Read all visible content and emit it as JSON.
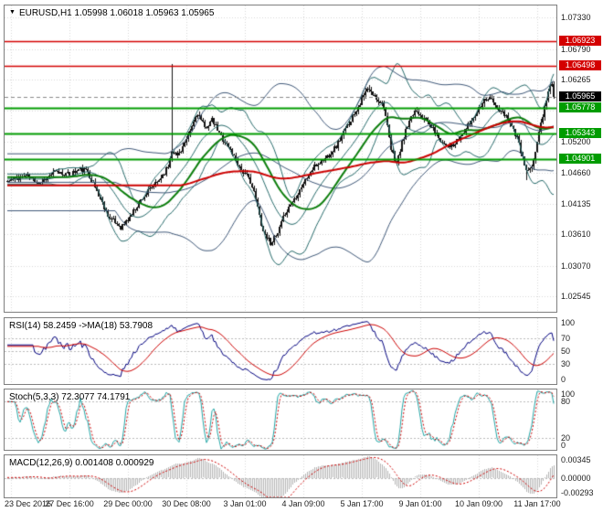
{
  "window": {
    "legend_marker": "▼"
  },
  "main_chart": {
    "legend": "EURUSD,H1 1.05998 1.06018 1.05963 1.05965",
    "scale_ticks": [
      {
        "label": "1.07330",
        "price": 1.0733
      },
      {
        "label": "1.06790",
        "price": 1.0679
      },
      {
        "label": "1.06265",
        "price": 1.06265
      },
      {
        "label": "1.05200",
        "price": 1.052
      },
      {
        "label": "1.04660",
        "price": 1.0466
      },
      {
        "label": "1.04135",
        "price": 1.04135
      },
      {
        "label": "1.03610",
        "price": 1.0361
      },
      {
        "label": "1.03070",
        "price": 1.0307
      },
      {
        "label": "1.02545",
        "price": 1.02545
      }
    ],
    "grid_extra_prices": [
      1.05733
    ],
    "line_labels": [
      {
        "label": "1.06923",
        "price": 1.06923,
        "bg": "#d40000"
      },
      {
        "label": "1.06498",
        "price": 1.06498,
        "bg": "#d40000"
      },
      {
        "label": "1.05965",
        "price": 1.05965,
        "bg": "#000000"
      },
      {
        "label": "1.05778",
        "price": 1.05778,
        "bg": "#009c00"
      },
      {
        "label": "1.05343",
        "price": 1.05343,
        "bg": "#009c00"
      },
      {
        "label": "1.04901",
        "price": 1.04901,
        "bg": "#009c00"
      }
    ]
  },
  "panels": {
    "rsi": {
      "legend": "RSI(14) 58.2459 ->MA(18) 53.7908",
      "scale_labels": [
        {
          "label": "100",
          "v": 100
        },
        {
          "label": "70",
          "v": 70
        },
        {
          "label": "50",
          "v": 50
        },
        {
          "label": "30",
          "v": 30
        },
        {
          "label": "0",
          "v": 0
        }
      ],
      "levels": [
        70,
        50,
        30
      ]
    },
    "stoch": {
      "legend": "Stoch(5,3,3) 72.3077 74.1791",
      "scale_labels": [
        {
          "label": "100",
          "v": 100
        },
        {
          "label": "80",
          "v": 80
        },
        {
          "label": "20",
          "v": 20
        },
        {
          "label": "0",
          "v": 0
        }
      ],
      "levels": [
        80,
        20
      ]
    },
    "macd": {
      "legend": "MACD(12,26,9) 0.001408 0.000929",
      "scale_labels": [
        {
          "label": "0.00345",
          "v": 0.00345
        },
        {
          "label": "0.00000",
          "v": 0
        },
        {
          "label": "-0.00293",
          "v": -0.00293
        }
      ],
      "range": [
        -0.00293,
        0.00345
      ]
    }
  },
  "x_axis": {
    "labels": [
      "23 Dec 2016",
      "27 Dec 16:00",
      "29 Dec 00:00",
      "30 Dec 08:00",
      "3 Jan 01:00",
      "4 Jan 09:00",
      "5 Jan 17:00",
      "9 Jan 01:00",
      "10 Jan 09:00",
      "11 Jan 17:00"
    ],
    "bars_per_grid": 32
  },
  "chart_data": {
    "type": "candlestick",
    "symbol": "EURUSD",
    "timeframe": "H1",
    "open": "1.05998",
    "high": "1.06018",
    "low": "1.05963",
    "close": "1.05965",
    "bars": 300,
    "seed": 11,
    "noise": 0.0009,
    "wick": 0.0006,
    "price_min": 1.0228,
    "price_max": 1.0754,
    "last_close": 1.05965,
    "price_keyframes": [
      [
        0,
        1.0452
      ],
      [
        10,
        1.0462
      ],
      [
        18,
        1.045
      ],
      [
        26,
        1.0468
      ],
      [
        34,
        1.0464
      ],
      [
        40,
        1.0473
      ],
      [
        44,
        1.0469
      ],
      [
        50,
        1.0428
      ],
      [
        56,
        1.0388
      ],
      [
        62,
        1.0374
      ],
      [
        66,
        1.0386
      ],
      [
        74,
        1.0424
      ],
      [
        82,
        1.045
      ],
      [
        88,
        1.0478
      ],
      [
        90,
        1.0506
      ],
      [
        93,
        1.0496
      ],
      [
        98,
        1.0522
      ],
      [
        104,
        1.057
      ],
      [
        108,
        1.0544
      ],
      [
        112,
        1.0557
      ],
      [
        116,
        1.0534
      ],
      [
        122,
        1.0506
      ],
      [
        128,
        1.0472
      ],
      [
        133,
        1.0453
      ],
      [
        136,
        1.0421
      ],
      [
        140,
        1.0366
      ],
      [
        144,
        1.0347
      ],
      [
        148,
        1.0361
      ],
      [
        152,
        1.0398
      ],
      [
        158,
        1.0427
      ],
      [
        162,
        1.0449
      ],
      [
        168,
        1.0477
      ],
      [
        174,
        1.0491
      ],
      [
        180,
        1.0513
      ],
      [
        186,
        1.0547
      ],
      [
        192,
        1.0581
      ],
      [
        197,
        1.0611
      ],
      [
        201,
        1.0597
      ],
      [
        206,
        1.0583
      ],
      [
        210,
        1.0506
      ],
      [
        213,
        1.0483
      ],
      [
        218,
        1.0539
      ],
      [
        223,
        1.0574
      ],
      [
        226,
        1.0569
      ],
      [
        232,
        1.0546
      ],
      [
        238,
        1.0519
      ],
      [
        244,
        1.0511
      ],
      [
        248,
        1.0529
      ],
      [
        254,
        1.0556
      ],
      [
        260,
        1.0589
      ],
      [
        264,
        1.0597
      ],
      [
        268,
        1.0576
      ],
      [
        274,
        1.0561
      ],
      [
        279,
        1.0526
      ],
      [
        284,
        1.0469
      ],
      [
        287,
        1.0473
      ],
      [
        290,
        1.0521
      ],
      [
        293,
        1.0566
      ],
      [
        296,
        1.0607
      ],
      [
        298,
        1.062
      ],
      [
        299,
        1.05965
      ]
    ],
    "wick_overrides": [
      {
        "bar": 90,
        "high": 1.0653
      },
      {
        "bar": 144,
        "low": 1.0341
      },
      {
        "bar": 284,
        "low": 1.0454
      }
    ],
    "horizontal_lines": [
      {
        "price": 1.06923,
        "color": "#d40000",
        "width": 1.6
      },
      {
        "price": 1.06498,
        "color": "#d40000",
        "width": 1.6
      },
      {
        "price": 1.05778,
        "color": "#009c00",
        "width": 2
      },
      {
        "price": 1.05343,
        "color": "#009c00",
        "width": 2
      },
      {
        "price": 1.04901,
        "color": "#009c00",
        "width": 2
      }
    ],
    "indicators": {
      "bollinger": [
        {
          "period": 20,
          "dev": 2,
          "color": "#266a6a"
        },
        {
          "period": 60,
          "dev": 2,
          "color": "#3f5878"
        }
      ],
      "ma": [
        {
          "period": 34,
          "color": "#0b7d0b",
          "width": 2
        },
        {
          "period": 96,
          "color": "#cc0000",
          "width": 2
        }
      ],
      "rsi": {
        "period": 14,
        "ma": 18,
        "color": "#00007f",
        "ma_color": "#cc0000"
      },
      "stoch": {
        "k": 5,
        "d": 3,
        "slowing": 3,
        "color": "#22a6a6",
        "signal_color": "#cc0000"
      },
      "macd": {
        "fast": 12,
        "slow": 26,
        "signal": 9,
        "hist_color": "#b5b5b5",
        "signal_color": "#cc0000"
      }
    }
  },
  "colors": {
    "grid": "#d6d6d6",
    "level": "#b9b9b9",
    "candle": "#121212",
    "current_line": "#8a8a8a",
    "text": "#1c1c1c",
    "panel_border": "#7f7f7f"
  }
}
